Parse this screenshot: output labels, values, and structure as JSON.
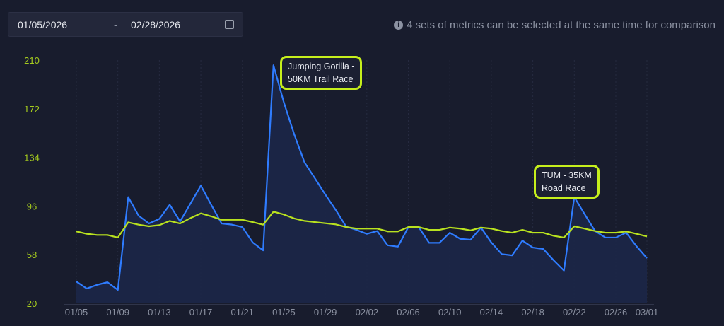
{
  "date_range": {
    "start": "01/05/2026",
    "separator": "-",
    "end": "02/28/2026",
    "calendar_icon": "calendar-icon"
  },
  "info": {
    "icon": "info-icon",
    "icon_glyph": "i",
    "text": "4 sets of metrics can be selected at the same time for comparison"
  },
  "colors": {
    "blue": "#2f7cff",
    "green": "#b9e21f",
    "area": "#1c2748",
    "axis_label_y": "#a6cc1e",
    "axis_label_x": "#8a90a0"
  },
  "chart_data": {
    "type": "line",
    "ylim": [
      20,
      210
    ],
    "yticks": [
      "210",
      "172",
      "134",
      "96",
      "58",
      "20"
    ],
    "ytick_values": [
      210,
      172,
      134,
      96,
      58,
      20
    ],
    "xticks": [
      "01/05",
      "01/09",
      "01/13",
      "01/17",
      "01/21",
      "01/25",
      "01/29",
      "02/02",
      "02/06",
      "02/10",
      "02/14",
      "02/18",
      "02/22",
      "02/26",
      "03/01"
    ],
    "xtick_index": [
      0,
      4,
      8,
      12,
      16,
      20,
      24,
      28,
      32,
      36,
      40,
      44,
      48,
      52,
      55
    ],
    "x_start": "01/05",
    "num_days": 56,
    "series": [
      {
        "name": "blue",
        "values": [
          37,
          31.6,
          34.5,
          36.5,
          30.5,
          103,
          88.5,
          82.4,
          86,
          97,
          84,
          98,
          112,
          97,
          82.4,
          81.5,
          79.6,
          67.6,
          61.4,
          206,
          177,
          152,
          130,
          117.6,
          105,
          93,
          80,
          77.4,
          74.3,
          76.5,
          65.4,
          64.3,
          79.6,
          79.6,
          67.3,
          67.3,
          75.2,
          70.4,
          69.7,
          79.2,
          67.6,
          58.5,
          57.5,
          69,
          63.6,
          62.5,
          53.7,
          45.6,
          103,
          89.6,
          76.5,
          71.4,
          71.4,
          75.2,
          64.6,
          55.3
        ]
      },
      {
        "name": "green",
        "values": [
          76.2,
          74.3,
          73.4,
          73.4,
          71.4,
          83.3,
          81.5,
          80.2,
          81.1,
          84.4,
          82.4,
          86.6,
          90.3,
          88,
          85.3,
          85.3,
          85.3,
          83.5,
          81.5,
          91.6,
          89.4,
          86.3,
          84.4,
          83.5,
          82.6,
          81.7,
          79.6,
          78.4,
          78.4,
          78.4,
          76.2,
          76.2,
          79.6,
          79.6,
          77.4,
          77.4,
          79.2,
          78.4,
          77,
          79.2,
          78.4,
          76.5,
          75.2,
          77.4,
          75.2,
          75.2,
          72.8,
          71.4,
          80.2,
          78.4,
          76.5,
          75.2,
          75.2,
          76.2,
          74.3,
          72.3
        ]
      }
    ],
    "annotations": [
      {
        "text": "Jumping Gorilla -\n50KM Trail Race",
        "day_index": 19
      },
      {
        "text": "TUM - 35KM\nRoad Race",
        "day_index": 48
      }
    ]
  }
}
